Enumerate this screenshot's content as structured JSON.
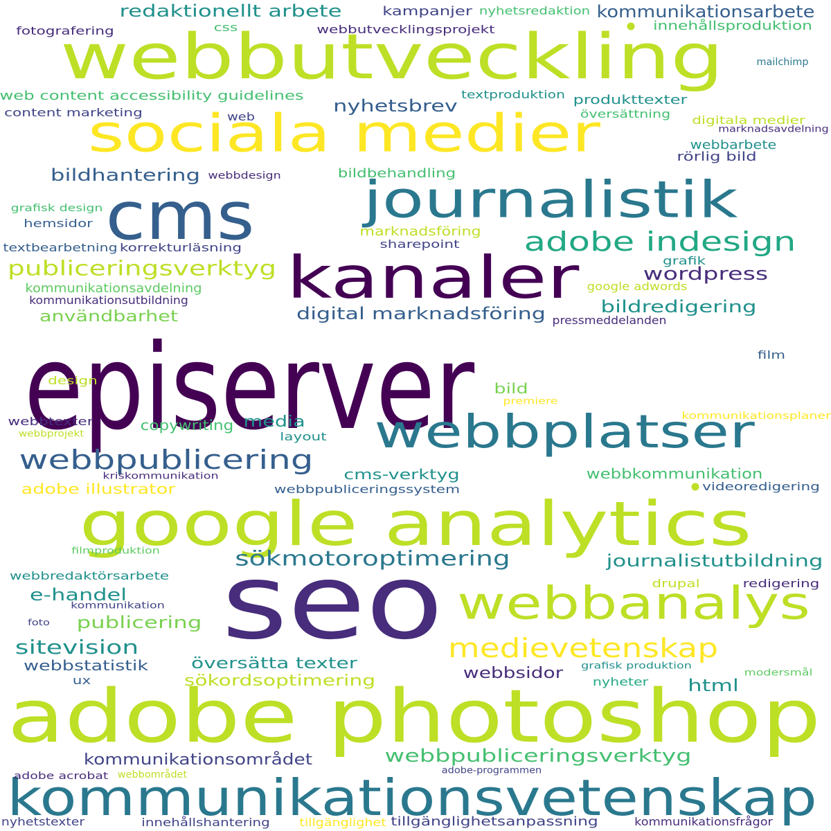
{
  "palette": {
    "yellow": "#fde725",
    "lime": "#bddf26",
    "green": "#7ad151",
    "seagreen": "#5ec962",
    "mint": "#44bf70",
    "teal": "#22a884",
    "teal_blue": "#21918c",
    "blue_teal": "#2a788e",
    "steel": "#355f8d",
    "indigo": "#414487",
    "purple": "#472d7b",
    "deep_purple": "#440154"
  },
  "words": [
    {
      "text": "episerver",
      "color": "#440154"
    },
    {
      "text": "seo",
      "color": "#472d7b"
    },
    {
      "text": "adobe photoshop",
      "color": "#bddf26"
    },
    {
      "text": "google analytics",
      "color": "#bddf26"
    },
    {
      "text": "webbutveckling",
      "color": "#bddf26"
    },
    {
      "text": "kommunikationsvetenskap",
      "color": "#2a788e"
    },
    {
      "text": "sociala medier",
      "color": "#fde725"
    },
    {
      "text": "journalistik",
      "color": "#2a788e"
    },
    {
      "text": "kanaler",
      "color": "#440154"
    },
    {
      "text": "cms",
      "color": "#355f8d"
    },
    {
      "text": "webbplatser",
      "color": "#2a788e"
    },
    {
      "text": "webbanalys",
      "color": "#bddf26"
    },
    {
      "text": "webbpublicering",
      "color": "#355f8d"
    },
    {
      "text": "medievetenskap",
      "color": "#fde725"
    },
    {
      "text": "adobe indesign",
      "color": "#22a884"
    },
    {
      "text": "sökmotoroptimering",
      "color": "#2a788e"
    },
    {
      "text": "publiceringsverktyg",
      "color": "#bddf26"
    },
    {
      "text": "redaktionellt arbete",
      "color": "#21918c"
    },
    {
      "text": "kommunikationsarbete",
      "color": "#355f8d"
    },
    {
      "text": "webbpubliceringsverktyg",
      "color": "#44bf70"
    },
    {
      "text": "wordpress",
      "color": "#472d7b"
    },
    {
      "text": "nyhetsbrev",
      "color": "#355f8d"
    },
    {
      "text": "bildhantering",
      "color": "#355f8d"
    },
    {
      "text": "sitevision",
      "color": "#21918c"
    },
    {
      "text": "bildredigering",
      "color": "#21918c"
    },
    {
      "text": "digital marknadsföring",
      "color": "#355f8d"
    },
    {
      "text": "journalistutbildning",
      "color": "#21918c"
    },
    {
      "text": "publicering",
      "color": "#7ad151"
    },
    {
      "text": "e-handel",
      "color": "#21918c"
    },
    {
      "text": "kommunikationsområdet",
      "color": "#414487"
    },
    {
      "text": "översätta texter",
      "color": "#21918c"
    },
    {
      "text": "webbsidor",
      "color": "#472d7b"
    },
    {
      "text": "html",
      "color": "#21918c"
    },
    {
      "text": "användbarhet",
      "color": "#7ad151"
    },
    {
      "text": "sökordsoptimering",
      "color": "#bddf26"
    },
    {
      "text": "media",
      "color": "#21918c"
    },
    {
      "text": "webbstatistik",
      "color": "#355f8d"
    },
    {
      "text": "cms-verktyg",
      "color": "#21918c"
    },
    {
      "text": "webbkommunikation",
      "color": "#44bf70"
    },
    {
      "text": "adobe illustrator",
      "color": "#fde725"
    },
    {
      "text": "bild",
      "color": "#7ad151"
    },
    {
      "text": "copywriting",
      "color": "#44bf70"
    },
    {
      "text": "webbutvecklingsprojekt",
      "color": "#472d7b"
    },
    {
      "text": "kampanjer",
      "color": "#414487"
    },
    {
      "text": "innehållsproduktion",
      "color": "#44bf70"
    },
    {
      "text": "fotografering",
      "color": "#472d7b"
    },
    {
      "text": "nyhetsredaktion",
      "color": "#44bf70"
    },
    {
      "text": "css",
      "color": "#44bf70"
    },
    {
      "text": "web content accessibility guidelines",
      "color": "#44bf70"
    },
    {
      "text": "content marketing",
      "color": "#414487"
    },
    {
      "text": "web",
      "color": "#414487"
    },
    {
      "text": "textproduktion",
      "color": "#21918c"
    },
    {
      "text": "produkttexter",
      "color": "#21918c"
    },
    {
      "text": "översättning",
      "color": "#44bf70"
    },
    {
      "text": "mailchimp",
      "color": "#2a788e"
    },
    {
      "text": "digitala medier",
      "color": "#bddf26"
    },
    {
      "text": "marknadsavdelning",
      "color": "#472d7b"
    },
    {
      "text": "webbarbete",
      "color": "#21918c"
    },
    {
      "text": "rörlig bild",
      "color": "#414487"
    },
    {
      "text": "bildbehandling",
      "color": "#44bf70"
    },
    {
      "text": "webbdesign",
      "color": "#472d7b"
    },
    {
      "text": "grafisk design",
      "color": "#44bf70"
    },
    {
      "text": "hemsidor",
      "color": "#355f8d"
    },
    {
      "text": "marknadsföring",
      "color": "#bddf26"
    },
    {
      "text": "sharepoint",
      "color": "#414487"
    },
    {
      "text": "textbearbetning",
      "color": "#355f8d"
    },
    {
      "text": "korrekturläsning",
      "color": "#414487"
    },
    {
      "text": "grafik",
      "color": "#21918c"
    },
    {
      "text": "google adwords",
      "color": "#bddf26"
    },
    {
      "text": "kommunikationsavdelning",
      "color": "#5ec962"
    },
    {
      "text": "kommunikationsutbildning",
      "color": "#472d7b"
    },
    {
      "text": "pressmeddelanden",
      "color": "#472d7b"
    },
    {
      "text": "film",
      "color": "#355f8d"
    },
    {
      "text": "design",
      "color": "#bddf26"
    },
    {
      "text": "premiere",
      "color": "#fde725"
    },
    {
      "text": "kommunikationsplaner",
      "color": "#fde725"
    },
    {
      "text": "webbtexter",
      "color": "#472d7b"
    },
    {
      "text": "webbprojekt",
      "color": "#bddf26"
    },
    {
      "text": "layout",
      "color": "#21918c"
    },
    {
      "text": "kriskommunikation",
      "color": "#472d7b"
    },
    {
      "text": "webbpubliceringssystem",
      "color": "#355f8d"
    },
    {
      "text": "videoredigering",
      "color": "#355f8d"
    },
    {
      "text": "filmproduktion",
      "color": "#5ec962"
    },
    {
      "text": "webbredaktörsarbete",
      "color": "#21918c"
    },
    {
      "text": "kommunikation",
      "color": "#414487"
    },
    {
      "text": "drupal",
      "color": "#bddf26"
    },
    {
      "text": "redigering",
      "color": "#472d7b"
    },
    {
      "text": "foto",
      "color": "#414487"
    },
    {
      "text": "grafisk produktion",
      "color": "#21918c"
    },
    {
      "text": "modersmål",
      "color": "#5ec962"
    },
    {
      "text": "ux",
      "color": "#355f8d"
    },
    {
      "text": "nyheter",
      "color": "#22a884"
    },
    {
      "text": "adobe acrobat",
      "color": "#472d7b"
    },
    {
      "text": "webbområdet",
      "color": "#bddf26"
    },
    {
      "text": "adobe-programmen",
      "color": "#414487"
    },
    {
      "text": "nyhetstexter",
      "color": "#414487"
    },
    {
      "text": "innehållshantering",
      "color": "#414487"
    },
    {
      "text": "tillgänglighet",
      "color": "#fde725"
    },
    {
      "text": "tillgänglighetsanpassning",
      "color": "#414487"
    },
    {
      "text": "kommunikationsfrågor",
      "color": "#472d7b"
    }
  ]
}
